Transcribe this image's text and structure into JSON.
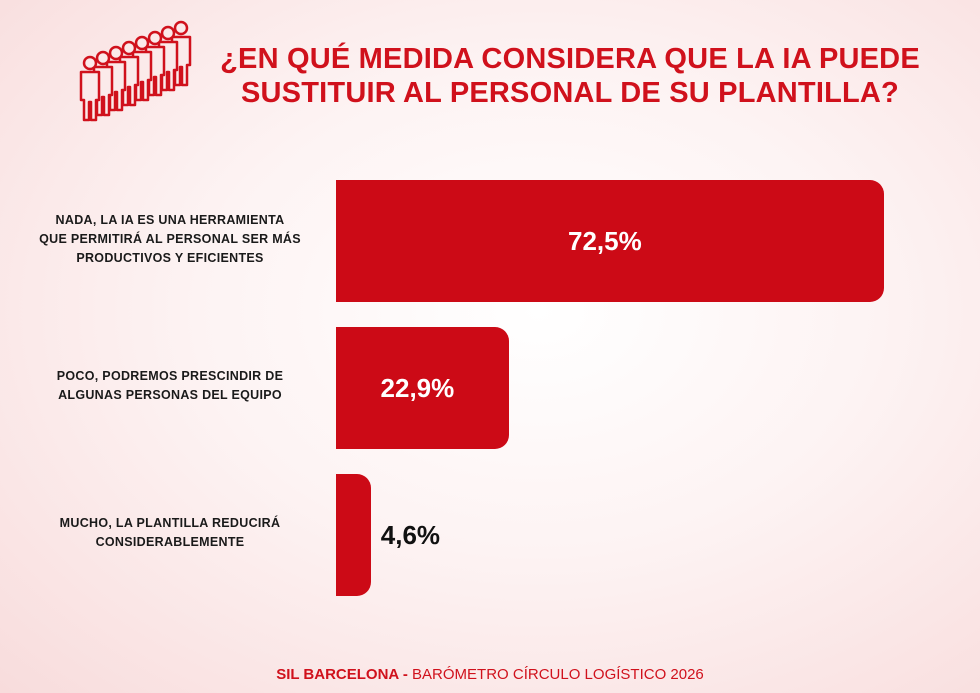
{
  "chart_data": {
    "type": "bar",
    "orientation": "horizontal",
    "title": "¿EN QUÉ MEDIDA CONSIDERA QUE LA IA PUEDE SUSTITUIR AL PERSONAL DE SU PLANTILLA?",
    "categories": [
      "NADA, LA IA ES UNA HERRAMIENTA QUE PERMITIRÁ AL PERSONAL SER MÁS PRODUCTIVOS Y EFICIENTES",
      "POCO, PODREMOS PRESCINDIR DE ALGUNAS PERSONAS DEL EQUIPO",
      "MUCHO, LA PLANTILLA REDUCIRÁ CONSIDERABLEMENTE"
    ],
    "values": [
      72.5,
      22.9,
      4.6
    ],
    "data_labels": [
      "72,5%",
      "22,9%",
      "4,6%"
    ],
    "unit": "%",
    "grid": false,
    "bar_color": "#cc0a16"
  },
  "footer": {
    "brand": "SIL BARCELONA -",
    "text": " BARÓMETRO CÍRCULO  LOGÍSTICO 2026"
  },
  "icon": "people-queue-icon",
  "colors": {
    "accent": "#d0111c"
  }
}
